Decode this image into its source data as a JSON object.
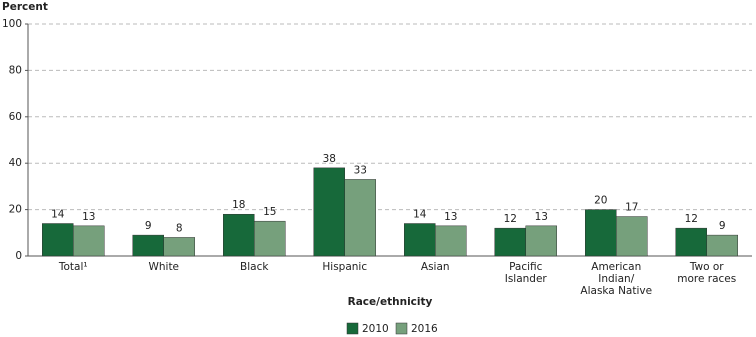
{
  "chart_data": {
    "type": "bar",
    "y_label": "Percent",
    "x_label": "Race/ethnicity",
    "categories": [
      "Total¹",
      "White",
      "Black",
      "Hispanic",
      "Asian",
      "Pacific\nIslander",
      "American\nIndian/\nAlaska Native",
      "Two or\nmore races"
    ],
    "series": [
      {
        "name": "2010",
        "color": "#17693a",
        "values": [
          14,
          9,
          18,
          38,
          14,
          12,
          20,
          12
        ]
      },
      {
        "name": "2016",
        "color": "#76a07c",
        "values": [
          13,
          8,
          15,
          33,
          13,
          13,
          17,
          9
        ]
      }
    ],
    "ylim": [
      0,
      100
    ],
    "yticks": [
      0,
      20,
      40,
      60,
      80,
      100
    ],
    "grid": true
  }
}
